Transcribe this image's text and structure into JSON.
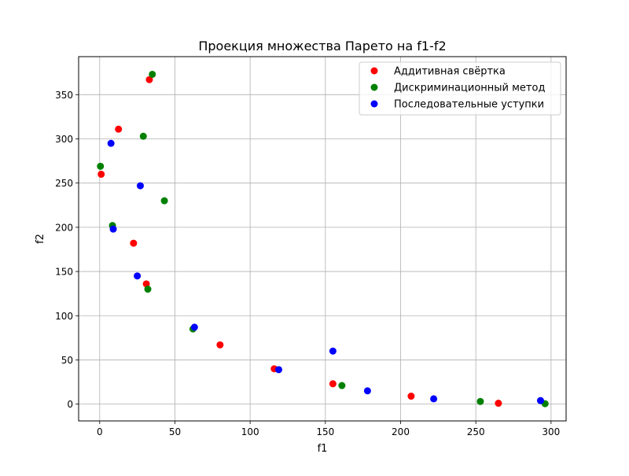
{
  "chart_data": {
    "type": "scatter",
    "title": "Проекция множества Парето на f1-f2",
    "xlabel": "f1",
    "ylabel": "f2",
    "xlim": [
      -14,
      310
    ],
    "ylim": [
      -19,
      393
    ],
    "xticks": [
      0,
      50,
      100,
      150,
      200,
      250,
      300
    ],
    "yticks": [
      0,
      50,
      100,
      150,
      200,
      250,
      300,
      350
    ],
    "grid": true,
    "legend_position": "top-right",
    "series": [
      {
        "name": "Аддитивная свёртка",
        "color": "#ff0000",
        "points": [
          [
            33,
            367
          ],
          [
            12.5,
            311
          ],
          [
            1,
            260
          ],
          [
            22.5,
            182
          ],
          [
            31,
            136
          ],
          [
            80,
            67
          ],
          [
            116,
            40
          ],
          [
            155,
            23
          ],
          [
            207,
            9
          ],
          [
            265,
            1
          ]
        ]
      },
      {
        "name": "Дискриминационный метод",
        "color": "#008000",
        "points": [
          [
            35,
            373
          ],
          [
            29,
            303
          ],
          [
            0.5,
            269
          ],
          [
            43,
            230
          ],
          [
            8.5,
            202
          ],
          [
            32,
            130
          ],
          [
            62,
            85
          ],
          [
            161,
            21
          ],
          [
            253,
            3
          ],
          [
            296,
            0.5
          ]
        ]
      },
      {
        "name": "Последовательные уступки",
        "color": "#0000ff",
        "points": [
          [
            7.5,
            295
          ],
          [
            27,
            247
          ],
          [
            9,
            198
          ],
          [
            25,
            145
          ],
          [
            63,
            87
          ],
          [
            119,
            39
          ],
          [
            155,
            60
          ],
          [
            178,
            15
          ],
          [
            222,
            6
          ],
          [
            293,
            4
          ]
        ]
      }
    ]
  }
}
